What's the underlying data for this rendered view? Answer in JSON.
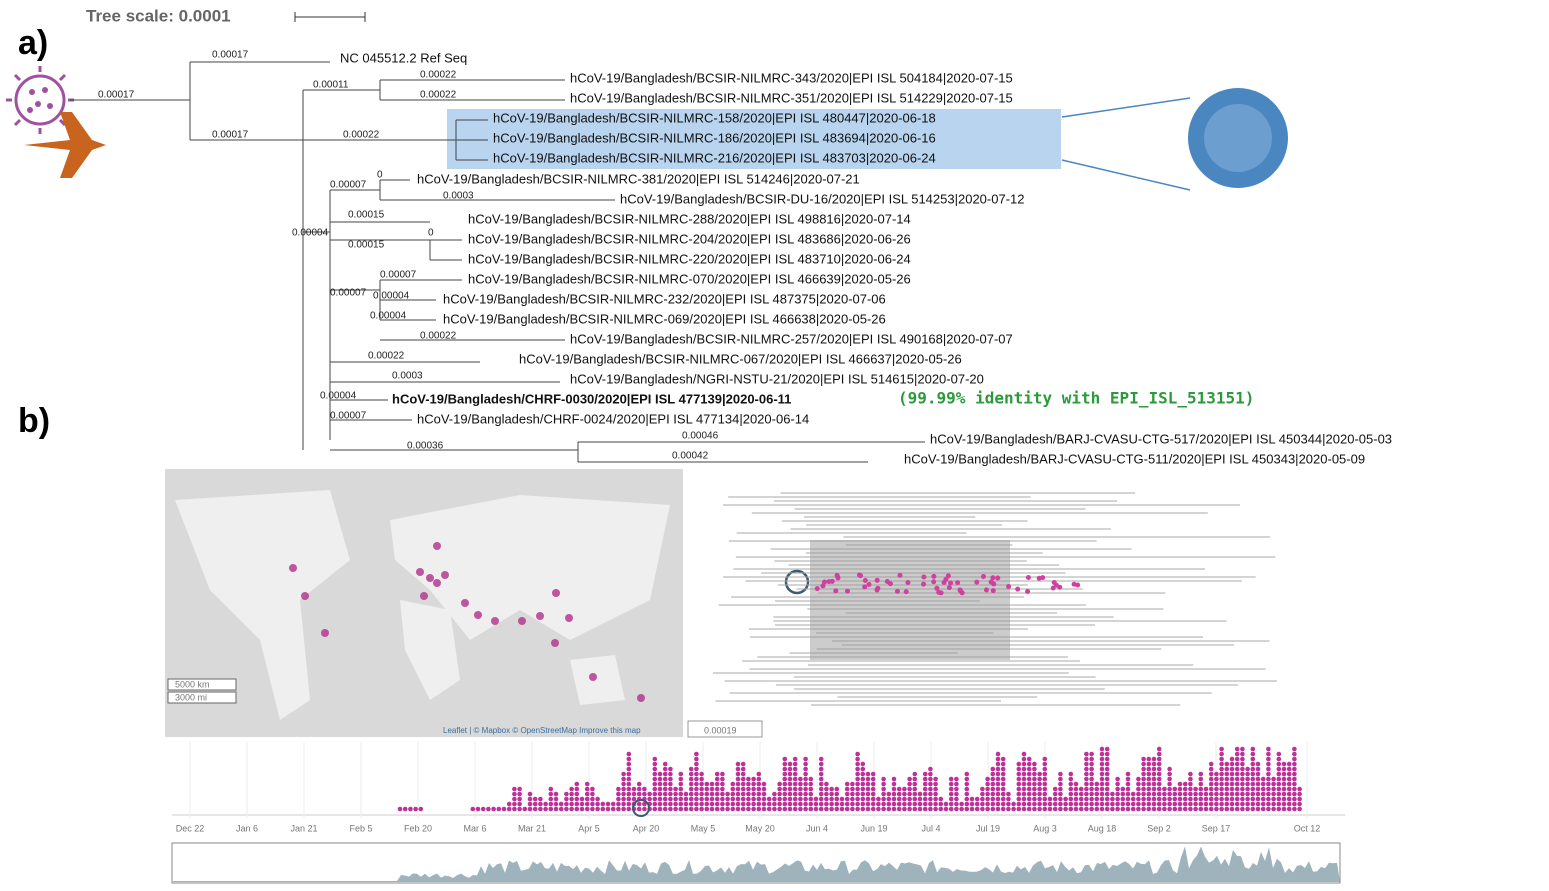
{
  "panel_a": {
    "label": "a)",
    "tree_scale": "Tree scale: 0.0001",
    "leaves": [
      "NC 045512.2 Ref Seq",
      "hCoV-19/Bangladesh/BCSIR-NILMRC-343/2020|EPI ISL 504184|2020-07-15",
      "hCoV-19/Bangladesh/BCSIR-NILMRC-351/2020|EPI ISL 514229|2020-07-15",
      "hCoV-19/Bangladesh/BCSIR-NILMRC-158/2020|EPI ISL 480447|2020-06-18",
      "hCoV-19/Bangladesh/BCSIR-NILMRC-186/2020|EPI ISL 483694|2020-06-16",
      "hCoV-19/Bangladesh/BCSIR-NILMRC-216/2020|EPI ISL 483703|2020-06-24",
      "hCoV-19/Bangladesh/BCSIR-NILMRC-381/2020|EPI ISL 514246|2020-07-21",
      "hCoV-19/Bangladesh/BCSIR-DU-16/2020|EPI ISL 514253|2020-07-12",
      "hCoV-19/Bangladesh/BCSIR-NILMRC-288/2020|EPI ISL 498816|2020-07-14",
      "hCoV-19/Bangladesh/BCSIR-NILMRC-204/2020|EPI ISL 483686|2020-06-26",
      "hCoV-19/Bangladesh/BCSIR-NILMRC-220/2020|EPI ISL 483710|2020-06-24",
      "hCoV-19/Bangladesh/BCSIR-NILMRC-070/2020|EPI ISL 466639|2020-05-26",
      "hCoV-19/Bangladesh/BCSIR-NILMRC-232/2020|EPI ISL 487375|2020-07-06",
      "hCoV-19/Bangladesh/BCSIR-NILMRC-069/2020|EPI ISL 466638|2020-05-26",
      "hCoV-19/Bangladesh/BCSIR-NILMRC-257/2020|EPI ISL 490168|2020-07-07",
      "hCoV-19/Bangladesh/BCSIR-NILMRC-067/2020|EPI ISL 466637|2020-05-26",
      "hCoV-19/Bangladesh/NGRI-NSTU-21/2020|EPI ISL 514615|2020-07-20",
      "hCoV-19/Bangladesh/CHRF-0030/2020|EPI ISL 477139|2020-06-11",
      "hCoV-19/Bangladesh/CHRF-0024/2020|EPI ISL 477134|2020-06-14",
      "hCoV-19/Bangladesh/BARJ-CVASU-CTG-517/2020|EPI ISL 450344|2020-05-03",
      "hCoV-19/Bangladesh/BARJ-CVASU-CTG-511/2020|EPI ISL 450343|2020-05-09"
    ],
    "identity_note": "(99.99% identity with EPI_ISL_513151)",
    "branch_labels": [
      "0.00017",
      "0.00017",
      "0.00017",
      "0.00011",
      "0.00022",
      "0.00022",
      "0.00022",
      "0",
      "0.00007",
      "0.0003",
      "0.00015",
      "0.00004",
      "0.00015",
      "0",
      "0.00007",
      "0.00007",
      "0.00004",
      "0.00004",
      "0.00022",
      "0.00022",
      "0.0003",
      "0.00004",
      "0.00007",
      "0.00046",
      "0.00036",
      "0.00042"
    ]
  },
  "panel_b": {
    "label": "b)",
    "map_scale_km": "5000 km",
    "map_scale_mi": "3000 mi",
    "map_attribution": "Leaflet | © Mapbox © OpenStreetMap Improve this map",
    "tree_scale": "0.00019",
    "timeline_ticks": [
      "Dec 22",
      "Jan 6",
      "Jan 21",
      "Feb 5",
      "Feb 20",
      "Mar 6",
      "Mar 21",
      "Apr 5",
      "Apr 20",
      "May 5",
      "May 20",
      "Jun 4",
      "Jun 19",
      "Jul 4",
      "Jul 19",
      "Aug 3",
      "Aug 18",
      "Sep 2",
      "Sep 17",
      "Oct 12"
    ]
  }
}
